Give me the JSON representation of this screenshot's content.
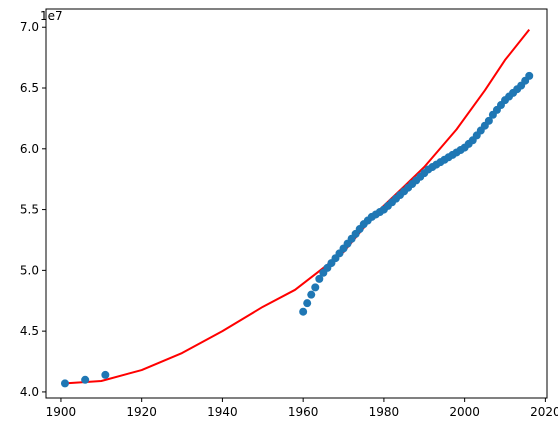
{
  "chart_data": {
    "type": "scatter",
    "title": "",
    "xlabel": "",
    "ylabel": "",
    "xlim": [
      1896.3,
      2020.4
    ],
    "ylim": [
      39500000,
      71500000
    ],
    "x_ticks": [
      1900,
      1920,
      1940,
      1960,
      1980,
      2000,
      2020
    ],
    "x_tick_labels": [
      "1900",
      "1920",
      "1940",
      "1960",
      "1980",
      "2000",
      "2020"
    ],
    "y_ticks": [
      40000000,
      45000000,
      50000000,
      55000000,
      60000000,
      65000000,
      70000000
    ],
    "y_tick_labels": [
      "4.0",
      "4.5",
      "5.0",
      "5.5",
      "6.0",
      "6.5",
      "7.0"
    ],
    "y_offset_label": "1e7",
    "grid": false,
    "legend": "none",
    "colors": {
      "points": "#1f77b4",
      "fit_line": "#ff0000"
    },
    "series": [
      {
        "kind": "scatter",
        "x": [
          1901,
          1906,
          1911,
          1960,
          1961,
          1962,
          1963,
          1964,
          1965,
          1966,
          1967,
          1968,
          1969,
          1970,
          1971,
          1972,
          1973,
          1974,
          1975,
          1976,
          1977,
          1978,
          1979,
          1980,
          1981,
          1982,
          1983,
          1984,
          1985,
          1986,
          1987,
          1988,
          1989,
          1990,
          1991,
          1992,
          1993,
          1994,
          1995,
          1996,
          1997,
          1998,
          1999,
          2000,
          2001,
          2002,
          2003,
          2004,
          2005,
          2006,
          2007,
          2008,
          2009,
          2010,
          2011,
          2012,
          2013,
          2014,
          2015,
          2016
        ],
        "y": [
          40700000,
          41000000,
          41400000,
          46600000,
          47300000,
          48000000,
          48600000,
          49300000,
          49800000,
          50200000,
          50600000,
          51000000,
          51400000,
          51800000,
          52200000,
          52600000,
          53000000,
          53400000,
          53800000,
          54100000,
          54400000,
          54600000,
          54800000,
          55000000,
          55300000,
          55600000,
          55900000,
          56200000,
          56500000,
          56800000,
          57100000,
          57400000,
          57700000,
          58000000,
          58300000,
          58500000,
          58700000,
          58900000,
          59100000,
          59300000,
          59500000,
          59700000,
          59900000,
          60100000,
          60400000,
          60700000,
          61100000,
          61500000,
          61900000,
          62300000,
          62800000,
          63200000,
          63600000,
          64000000,
          64300000,
          64600000,
          64900000,
          65200000,
          65600000,
          66000000
        ]
      },
      {
        "kind": "line",
        "x": [
          1901,
          1910,
          1920,
          1930,
          1940,
          1950,
          1958,
          1965,
          1970,
          1978,
          1985,
          1990,
          1998,
          2005,
          2010,
          2016
        ],
        "y": [
          40700000,
          40900000,
          41800000,
          43200000,
          45000000,
          47000000,
          48400000,
          50200000,
          51500000,
          54700000,
          56900000,
          58500000,
          61600000,
          64800000,
          67300000,
          69800000
        ]
      }
    ]
  }
}
